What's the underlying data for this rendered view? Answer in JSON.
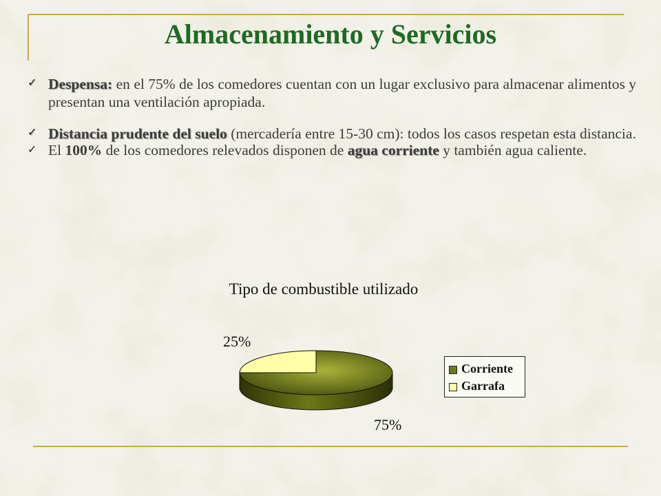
{
  "slide": {
    "title": "Almacenamiento y  Servicios",
    "bullets": [
      {
        "label": "Despensa:",
        "text": " en el 75%  de los comedores cuentan con un lugar exclusivo para almacenar alimentos y presentan una ventilación apropiada."
      },
      {
        "label": "Distancia prudente del suelo",
        "text": " (mercadería entre 15-30 cm): todos  los casos respetan  esta distancia."
      },
      {
        "pre": "El ",
        "strong1": "100%",
        "mid": " de los comedores relevados disponen de ",
        "strong2": "agua corriente",
        "post": "  y también agua caliente."
      }
    ],
    "check_icon": "check-icon"
  },
  "colors": {
    "title": "#1d6b23",
    "frame": "#c9a84a",
    "corriente": "#6e7a19",
    "garrafa": "#ffffa8"
  },
  "chart_data": {
    "type": "pie",
    "title": "Tipo de combustible utilizado",
    "categories": [
      "Corriente",
      "Garrafa"
    ],
    "values": [
      75,
      25
    ],
    "labels": [
      "75%",
      "25%"
    ],
    "legend": "right",
    "style": "3d"
  }
}
